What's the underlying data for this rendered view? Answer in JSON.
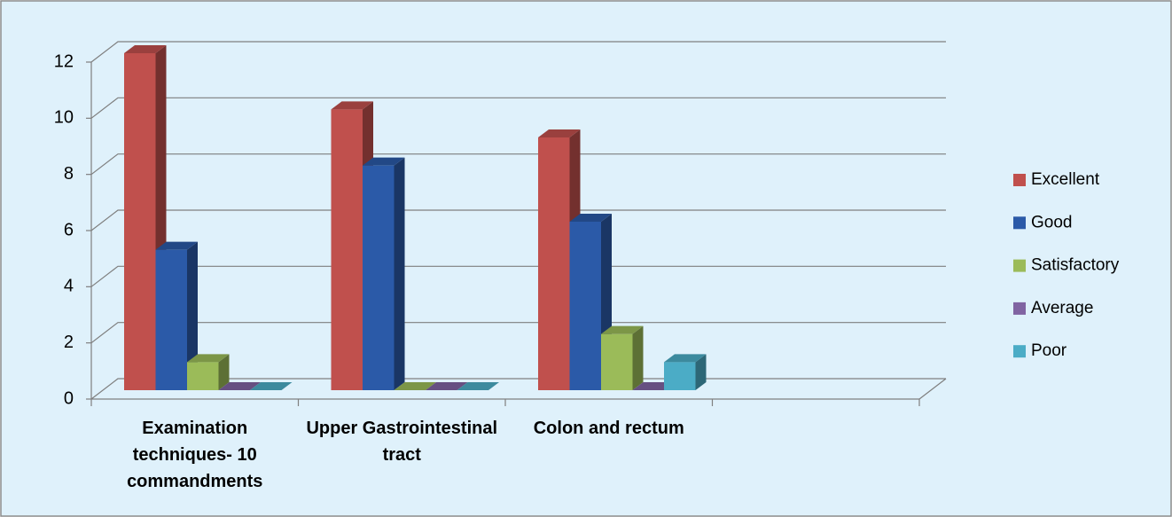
{
  "chart_data": {
    "type": "bar3d",
    "categories": [
      "Examination techniques- 10 commandments",
      "Upper Gastrointestinal tract",
      "Colon and rectum",
      null
    ],
    "series": [
      {
        "name": "Excellent",
        "color": "#c0504d",
        "values": [
          12,
          10,
          9,
          null
        ]
      },
      {
        "name": "Good",
        "color": "#2b5aa8",
        "values": [
          5,
          8,
          6,
          null
        ]
      },
      {
        "name": "Satisfactory",
        "color": "#9bbb59",
        "values": [
          1,
          0,
          2,
          null
        ]
      },
      {
        "name": "Average",
        "color": "#8064a2",
        "values": [
          0,
          0,
          0,
          null
        ]
      },
      {
        "name": "Poor",
        "color": "#4bacc6",
        "values": [
          0,
          0,
          1,
          null
        ]
      }
    ],
    "ylim": [
      0,
      12
    ],
    "yticks": [
      0,
      2,
      4,
      6,
      8,
      10,
      12
    ],
    "grid": true,
    "legend": "right"
  }
}
